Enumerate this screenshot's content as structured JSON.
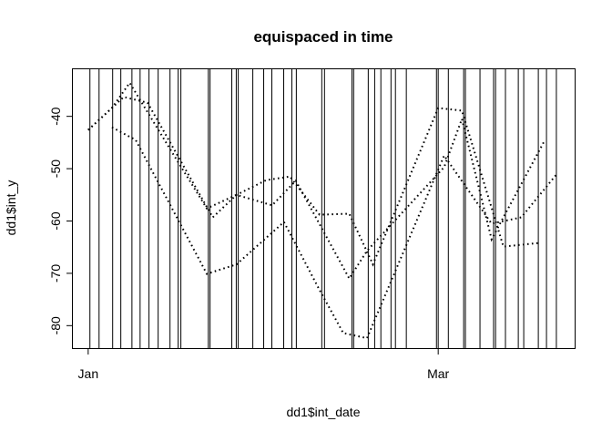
{
  "chart_data": {
    "type": "line",
    "title": "equispaced in time",
    "xlabel": "dd1$int_date",
    "ylabel": "dd1$int_y",
    "xlim": [
      "12-29T10",
      "03-24T00"
    ],
    "ylim": [
      -84.3,
      -31
    ],
    "x_ticks": [
      {
        "date": "01-01",
        "label": "Jan"
      },
      {
        "date": "03-01",
        "label": "Mar"
      }
    ],
    "y_ticks": [
      -40,
      -50,
      -60,
      -70,
      -80
    ],
    "grid": false,
    "line_style": "dotted",
    "color": "#000000",
    "vertical_lines": [
      "01-01T07",
      "01-02T20",
      "01-05T03",
      "01-06T12",
      "01-08T09",
      "01-09T18",
      "01-11T06",
      "01-12T19",
      "01-14T19",
      "01-16T04",
      "01-16T15",
      "01-21T06",
      "01-21T13",
      "01-25T05",
      "01-25T23",
      "01-26T07",
      "01-28T18",
      "01-30T14",
      "01-31T23",
      "02-02T23",
      "02-04T08",
      "02-05T02",
      "02-09T09",
      "02-09T20",
      "02-14T11",
      "02-14T18",
      "02-17T05",
      "02-18T07",
      "02-19T08",
      "02-21T01",
      "02-21T19",
      "02-23T15",
      "02-28T17",
      "03-01T00",
      "03-02T17",
      "03-05T07",
      "03-05T14",
      "03-08T01",
      "03-10T08",
      "03-10T16",
      "03-12T08",
      "03-14T12",
      "03-15T10",
      "03-17T21",
      "03-19T06",
      "03-20T22"
    ],
    "series": [
      {
        "x": [
          "01-01",
          "01-05",
          "01-08",
          "01-15",
          "01-21",
          "01-26",
          "02-01",
          "02-05",
          "02-14",
          "02-17",
          "03-02",
          "03-05",
          "03-10",
          "03-19"
        ],
        "y": [
          -42.6,
          -38.4,
          -33.6,
          -46.6,
          -57.6,
          -55.0,
          -57.0,
          -52.3,
          -71.0,
          -65.7,
          -49.7,
          -40.5,
          -63.5,
          -44.5
        ]
      },
      {
        "x": [
          "01-01",
          "01-07",
          "01-11",
          "01-22",
          "01-26",
          "01-31",
          "02-04",
          "02-09",
          "02-14",
          "02-18",
          "03-01",
          "03-05",
          "03-12",
          "03-18"
        ],
        "y": [
          -42.6,
          -36.3,
          -37.4,
          -59.3,
          -55.0,
          -52.2,
          -51.5,
          -58.8,
          -58.6,
          -68.3,
          -38.4,
          -38.9,
          -64.9,
          -64.2
        ]
      },
      {
        "x": [
          "01-05",
          "01-09",
          "01-21",
          "01-26",
          "02-03",
          "02-09",
          "02-13",
          "02-17",
          "03-02",
          "03-10",
          "03-15",
          "03-21"
        ],
        "y": [
          -42.1,
          -44.5,
          -70.1,
          -68.3,
          -60.2,
          -73.2,
          -81.4,
          -82.4,
          -47.5,
          -60.5,
          -59.3,
          -51.0
        ]
      }
    ]
  }
}
